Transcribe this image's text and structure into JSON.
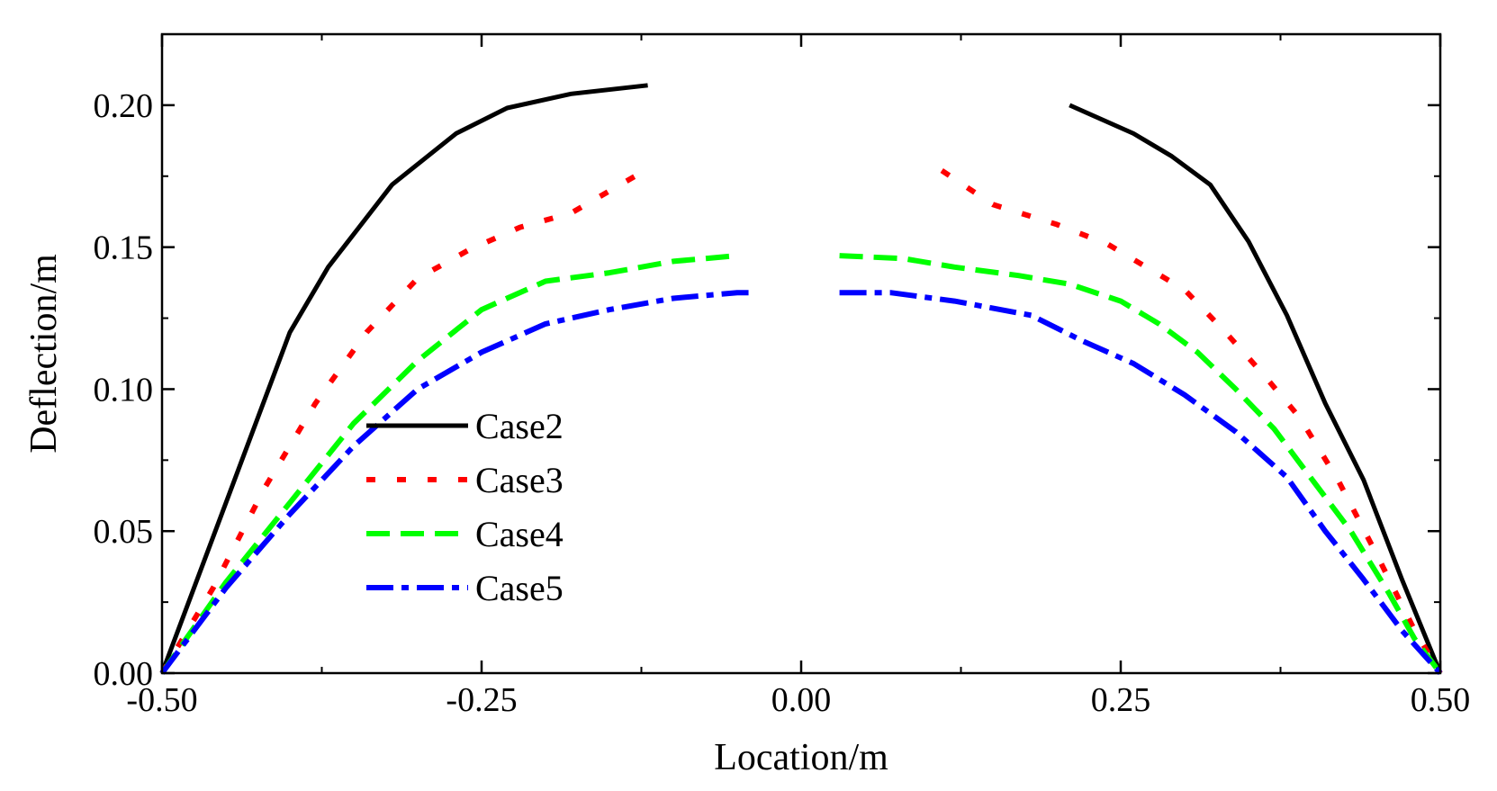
{
  "chart_data": {
    "type": "line",
    "title": "",
    "xlabel": "Location/m",
    "ylabel": "Deflection/m",
    "xlim": [
      -0.5,
      0.5
    ],
    "ylim": [
      0,
      0.225
    ],
    "xticks": [
      -0.5,
      -0.25,
      0.0,
      0.25,
      0.5
    ],
    "xtick_labels": [
      "-0.50",
      "-0.25",
      "0.00",
      "0.25",
      "0.50"
    ],
    "yticks": [
      0.0,
      0.05,
      0.1,
      0.15,
      0.2
    ],
    "ytick_labels": [
      "0.00",
      "0.05",
      "0.10",
      "0.15",
      "0.20"
    ],
    "grid": false,
    "legend_position": "lower-left",
    "series": [
      {
        "name": "Case2",
        "color": "#000000",
        "style": "solid",
        "segments": [
          [
            [
              -0.5,
              0.0
            ],
            [
              -0.45,
              0.06
            ],
            [
              -0.4,
              0.12
            ],
            [
              -0.37,
              0.143
            ],
            [
              -0.32,
              0.172
            ],
            [
              -0.27,
              0.19
            ],
            [
              -0.23,
              0.199
            ],
            [
              -0.18,
              0.204
            ],
            [
              -0.12,
              0.207
            ]
          ],
          [
            [
              0.21,
              0.2
            ],
            [
              0.26,
              0.19
            ],
            [
              0.29,
              0.182
            ],
            [
              0.32,
              0.172
            ],
            [
              0.35,
              0.152
            ],
            [
              0.38,
              0.126
            ],
            [
              0.41,
              0.095
            ],
            [
              0.44,
              0.068
            ],
            [
              0.47,
              0.033
            ],
            [
              0.5,
              0.0
            ]
          ]
        ]
      },
      {
        "name": "Case3",
        "color": "#ff0000",
        "style": "dotted",
        "segments": [
          [
            [
              -0.5,
              0.0
            ],
            [
              -0.46,
              0.03
            ],
            [
              -0.42,
              0.065
            ],
            [
              -0.38,
              0.095
            ],
            [
              -0.34,
              0.12
            ],
            [
              -0.3,
              0.139
            ],
            [
              -0.26,
              0.149
            ],
            [
              -0.22,
              0.157
            ],
            [
              -0.18,
              0.162
            ],
            [
              -0.13,
              0.175
            ]
          ],
          [
            [
              0.11,
              0.177
            ],
            [
              0.15,
              0.165
            ],
            [
              0.2,
              0.158
            ],
            [
              0.24,
              0.151
            ],
            [
              0.27,
              0.143
            ],
            [
              0.3,
              0.135
            ],
            [
              0.33,
              0.121
            ],
            [
              0.36,
              0.106
            ],
            [
              0.39,
              0.09
            ],
            [
              0.42,
              0.068
            ],
            [
              0.45,
              0.042
            ],
            [
              0.48,
              0.015
            ],
            [
              0.5,
              0.0
            ]
          ]
        ]
      },
      {
        "name": "Case4",
        "color": "#00ff00",
        "style": "dashed",
        "segments": [
          [
            [
              -0.5,
              0.0
            ],
            [
              -0.45,
              0.032
            ],
            [
              -0.4,
              0.06
            ],
            [
              -0.35,
              0.088
            ],
            [
              -0.3,
              0.11
            ],
            [
              -0.25,
              0.128
            ],
            [
              -0.2,
              0.138
            ],
            [
              -0.15,
              0.141
            ],
            [
              -0.1,
              0.145
            ],
            [
              -0.05,
              0.147
            ]
          ],
          [
            [
              0.03,
              0.147
            ],
            [
              0.08,
              0.146
            ],
            [
              0.12,
              0.143
            ],
            [
              0.17,
              0.14
            ],
            [
              0.21,
              0.137
            ],
            [
              0.25,
              0.131
            ],
            [
              0.28,
              0.123
            ],
            [
              0.31,
              0.113
            ],
            [
              0.34,
              0.1
            ],
            [
              0.37,
              0.086
            ],
            [
              0.4,
              0.068
            ],
            [
              0.43,
              0.05
            ],
            [
              0.46,
              0.028
            ],
            [
              0.48,
              0.012
            ],
            [
              0.5,
              0.0
            ]
          ]
        ]
      },
      {
        "name": "Case5",
        "color": "#0000ff",
        "style": "dashdot",
        "segments": [
          [
            [
              -0.5,
              0.0
            ],
            [
              -0.45,
              0.03
            ],
            [
              -0.4,
              0.056
            ],
            [
              -0.35,
              0.08
            ],
            [
              -0.3,
              0.1
            ],
            [
              -0.25,
              0.113
            ],
            [
              -0.2,
              0.123
            ],
            [
              -0.15,
              0.128
            ],
            [
              -0.1,
              0.132
            ],
            [
              -0.05,
              0.134
            ],
            [
              -0.04,
              0.134
            ]
          ],
          [
            [
              0.03,
              0.134
            ],
            [
              0.07,
              0.134
            ],
            [
              0.12,
              0.131
            ],
            [
              0.18,
              0.126
            ],
            [
              0.22,
              0.117
            ],
            [
              0.26,
              0.109
            ],
            [
              0.3,
              0.098
            ],
            [
              0.34,
              0.085
            ],
            [
              0.38,
              0.069
            ],
            [
              0.41,
              0.05
            ],
            [
              0.44,
              0.033
            ],
            [
              0.47,
              0.015
            ],
            [
              0.5,
              0.0
            ]
          ]
        ]
      }
    ]
  }
}
